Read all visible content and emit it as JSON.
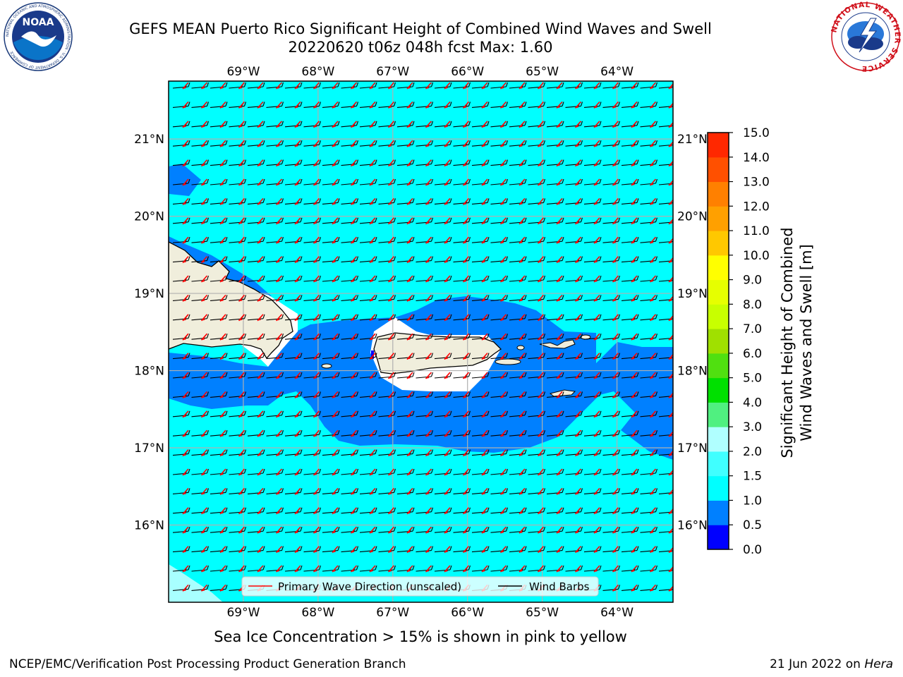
{
  "title_line1": "GEFS MEAN Puerto Rico Significant Height of Combined Wind Waves and Swell",
  "title_line2": "20220620 t06z 048h fcst   Max: 1.60",
  "logos": {
    "noaa_text": "NOAA",
    "noaa_ring_text": "NATIONAL OCEANIC AND ATMOSPHERIC ADMINISTRATION · U.S. DEPARTMENT OF COMMERCE",
    "nws_ring_text": "NATIONAL WEATHER SERVICE"
  },
  "ice_note": "Sea Ice Concentration > 15% is shown in pink to yellow",
  "footer_left": "NCEP/EMC/Verification Post Processing Product Generation Branch",
  "footer_right_prefix": "21 Jun 2022 on ",
  "footer_right_host": "Hera",
  "colors": {
    "ocean_1_0_1_5": "#00ffff",
    "ocean_0_5_1_0": "#0080ff",
    "land": "#f0eedc",
    "wave_arrow": "#ff0000",
    "wind_barb": "#000000",
    "grid": "#b0b0b0"
  },
  "chart_data": {
    "type": "heatmap",
    "title": "GEFS MEAN Puerto Rico Significant Height of Combined Wind Waves and Swell",
    "subtitle": "20220620 t06z 048h fcst   Max: 1.60",
    "max_value": 1.6,
    "lon_ticks": [
      "69°W",
      "68°W",
      "67°W",
      "66°W",
      "65°W",
      "64°W"
    ],
    "lat_ticks": [
      "21°N",
      "20°N",
      "19°N",
      "18°N",
      "17°N",
      "16°N"
    ],
    "lon_values": [
      -69,
      -68,
      -67,
      -66,
      -65,
      -64
    ],
    "lat_values": [
      21,
      20,
      19,
      18,
      17,
      16
    ],
    "xlim": [
      -70,
      -63.25
    ],
    "ylim": [
      15,
      21.75
    ],
    "grid": true,
    "colorbar": {
      "label": "Significant Height of Combined Wind Waves and Swell [m]",
      "label_line1": "Significant Height of Combined",
      "label_line2": "Wind Waves and Swell [m]",
      "ticks": [
        "0.0",
        "0.5",
        "1.0",
        "1.5",
        "2.0",
        "3.0",
        "4.0",
        "5.0",
        "6.0",
        "7.0",
        "8.0",
        "9.0",
        "10.0",
        "11.0",
        "12.0",
        "13.0",
        "14.0",
        "15.0"
      ],
      "bounds": [
        0,
        0.5,
        1,
        1.5,
        2,
        3,
        4,
        5,
        6,
        7,
        8,
        9,
        10,
        11,
        12,
        13,
        14,
        15
      ],
      "colors": [
        "#0000ff",
        "#0080ff",
        "#00ffff",
        "#40ffff",
        "#b0ffff",
        "#50f080",
        "#00e000",
        "#50e010",
        "#a0e000",
        "#c8ff00",
        "#e6ff00",
        "#ffff00",
        "#ffc800",
        "#ffa000",
        "#ff8000",
        "#ff5000",
        "#ff2800"
      ]
    },
    "legend": {
      "placement": "bottom-center",
      "entries": [
        "Primary Wave Direction (unscaled)",
        "Wind Barbs"
      ]
    },
    "regions": [
      {
        "name": "0.5-1.0 m band",
        "value_range": [
          0.5,
          1.0
        ],
        "description_points_lonlat": []
      },
      {
        "name": "1.0-1.5 m open ocean",
        "value_range": [
          1.0,
          1.5
        ]
      }
    ]
  }
}
